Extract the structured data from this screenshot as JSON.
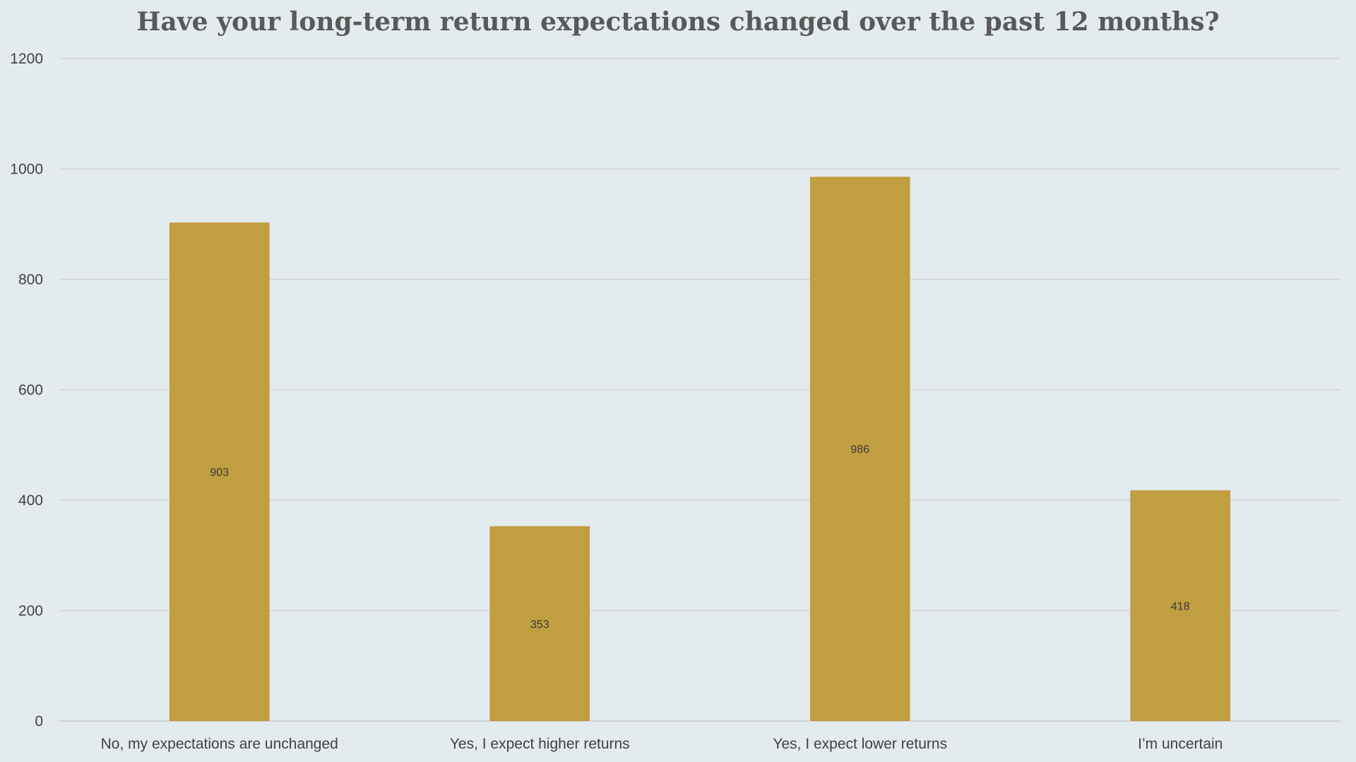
{
  "chart_data": {
    "type": "bar",
    "title": "Have your long-term return expectations changed over the past 12 months?",
    "xlabel": "",
    "ylabel": "",
    "categories": [
      "No, my expectations are unchanged",
      "Yes, I expect higher returns",
      "Yes, I expect lower returns",
      "I’m uncertain"
    ],
    "values": [
      903,
      353,
      986,
      418
    ],
    "data_labels": [
      "903",
      "353",
      "986",
      "418"
    ],
    "ylim": [
      0,
      1200
    ],
    "yticks": [
      "0",
      "200",
      "400",
      "600",
      "800",
      "1000",
      "1200"
    ],
    "grid": true,
    "legend": "none",
    "bar_color": "#c19e3f",
    "background_color": "#e4ebef"
  }
}
